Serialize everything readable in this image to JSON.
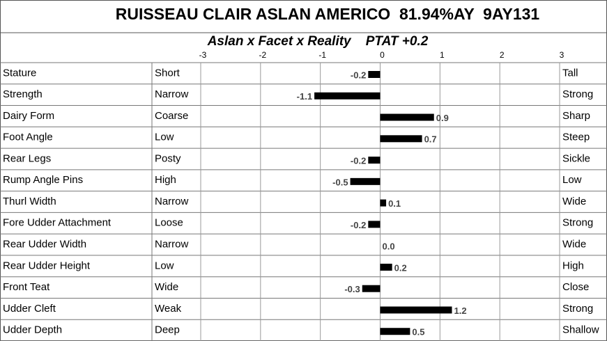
{
  "chart_data": {
    "type": "bar",
    "orientation": "horizontal",
    "title": "RUISSEAU CLAIR ASLAN AMERICO  81.94%AY  9AY131",
    "subtitle": "Aslan x Facet x Reality    PTAT +0.2",
    "categories": [
      "Stature",
      "Strength",
      "Dairy Form",
      "Foot Angle",
      "Rear Legs",
      "Rump Angle Pins",
      "Thurl Width",
      "Fore Udder Attachment",
      "Rear Udder Width",
      "Rear Udder Height",
      "Front Teat",
      "Udder Cleft",
      "Udder Depth"
    ],
    "low_labels": [
      "Short",
      "Narrow",
      "Coarse",
      "Low",
      "Posty",
      "High",
      "Narrow",
      "Loose",
      "Narrow",
      "Low",
      "Wide",
      "Weak",
      "Deep"
    ],
    "high_labels": [
      "Tall",
      "Strong",
      "Sharp",
      "Steep",
      "Sickle",
      "Low",
      "Wide",
      "Strong",
      "Wide",
      "High",
      "Close",
      "Strong",
      "Shallow"
    ],
    "values": [
      -0.2,
      -1.1,
      0.9,
      0.7,
      -0.2,
      -0.5,
      0.1,
      -0.2,
      0.0,
      0.2,
      -0.3,
      1.2,
      0.5
    ],
    "value_labels": [
      "-0.2",
      "-1.1",
      "0.9",
      "0.7",
      "-0.2",
      "-0.5",
      "0.1",
      "-0.2",
      "0.0",
      "0.2",
      "-0.3",
      "1.2",
      "0.5"
    ],
    "color": "#000000",
    "xlim": [
      -3,
      3
    ],
    "xticks": [
      -3,
      -2,
      -1,
      0,
      1,
      2,
      3
    ],
    "grid": true
  }
}
